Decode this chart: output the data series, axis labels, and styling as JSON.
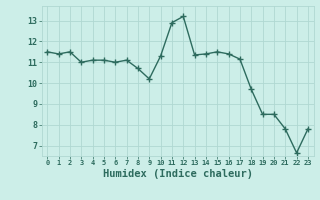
{
  "x": [
    0,
    1,
    2,
    3,
    4,
    5,
    6,
    7,
    8,
    9,
    10,
    11,
    12,
    13,
    14,
    15,
    16,
    17,
    18,
    19,
    20,
    21,
    22,
    23
  ],
  "y": [
    11.5,
    11.4,
    11.5,
    11.0,
    11.1,
    11.1,
    11.0,
    11.1,
    10.7,
    10.2,
    11.3,
    12.9,
    13.2,
    11.35,
    11.4,
    11.5,
    11.4,
    11.15,
    9.7,
    8.5,
    8.5,
    7.8,
    6.65,
    7.8
  ],
  "line_color": "#2d6b5e",
  "marker": "+",
  "marker_size": 4,
  "linewidth": 1.0,
  "bg_color": "#cceee8",
  "grid_color": "#b0d8d2",
  "tick_label_color": "#2d6b5e",
  "xlabel": "Humidex (Indice chaleur)",
  "xlabel_fontsize": 7.5,
  "xlabel_color": "#2d6b5e",
  "ylabel_color": "#2d6b5e",
  "ytick_vals": [
    7,
    8,
    9,
    10,
    11,
    12,
    13
  ],
  "ytick_labels": [
    "7",
    "8",
    "9",
    "10",
    "11",
    "12",
    "13"
  ],
  "ylim": [
    6.5,
    13.7
  ],
  "xtick_labels": [
    "0",
    "1",
    "2",
    "3",
    "4",
    "5",
    "6",
    "7",
    "8",
    "9",
    "10",
    "11",
    "12",
    "13",
    "14",
    "15",
    "16",
    "17",
    "18",
    "19",
    "20",
    "21",
    "22",
    "23"
  ],
  "xlim": [
    -0.5,
    23.5
  ]
}
